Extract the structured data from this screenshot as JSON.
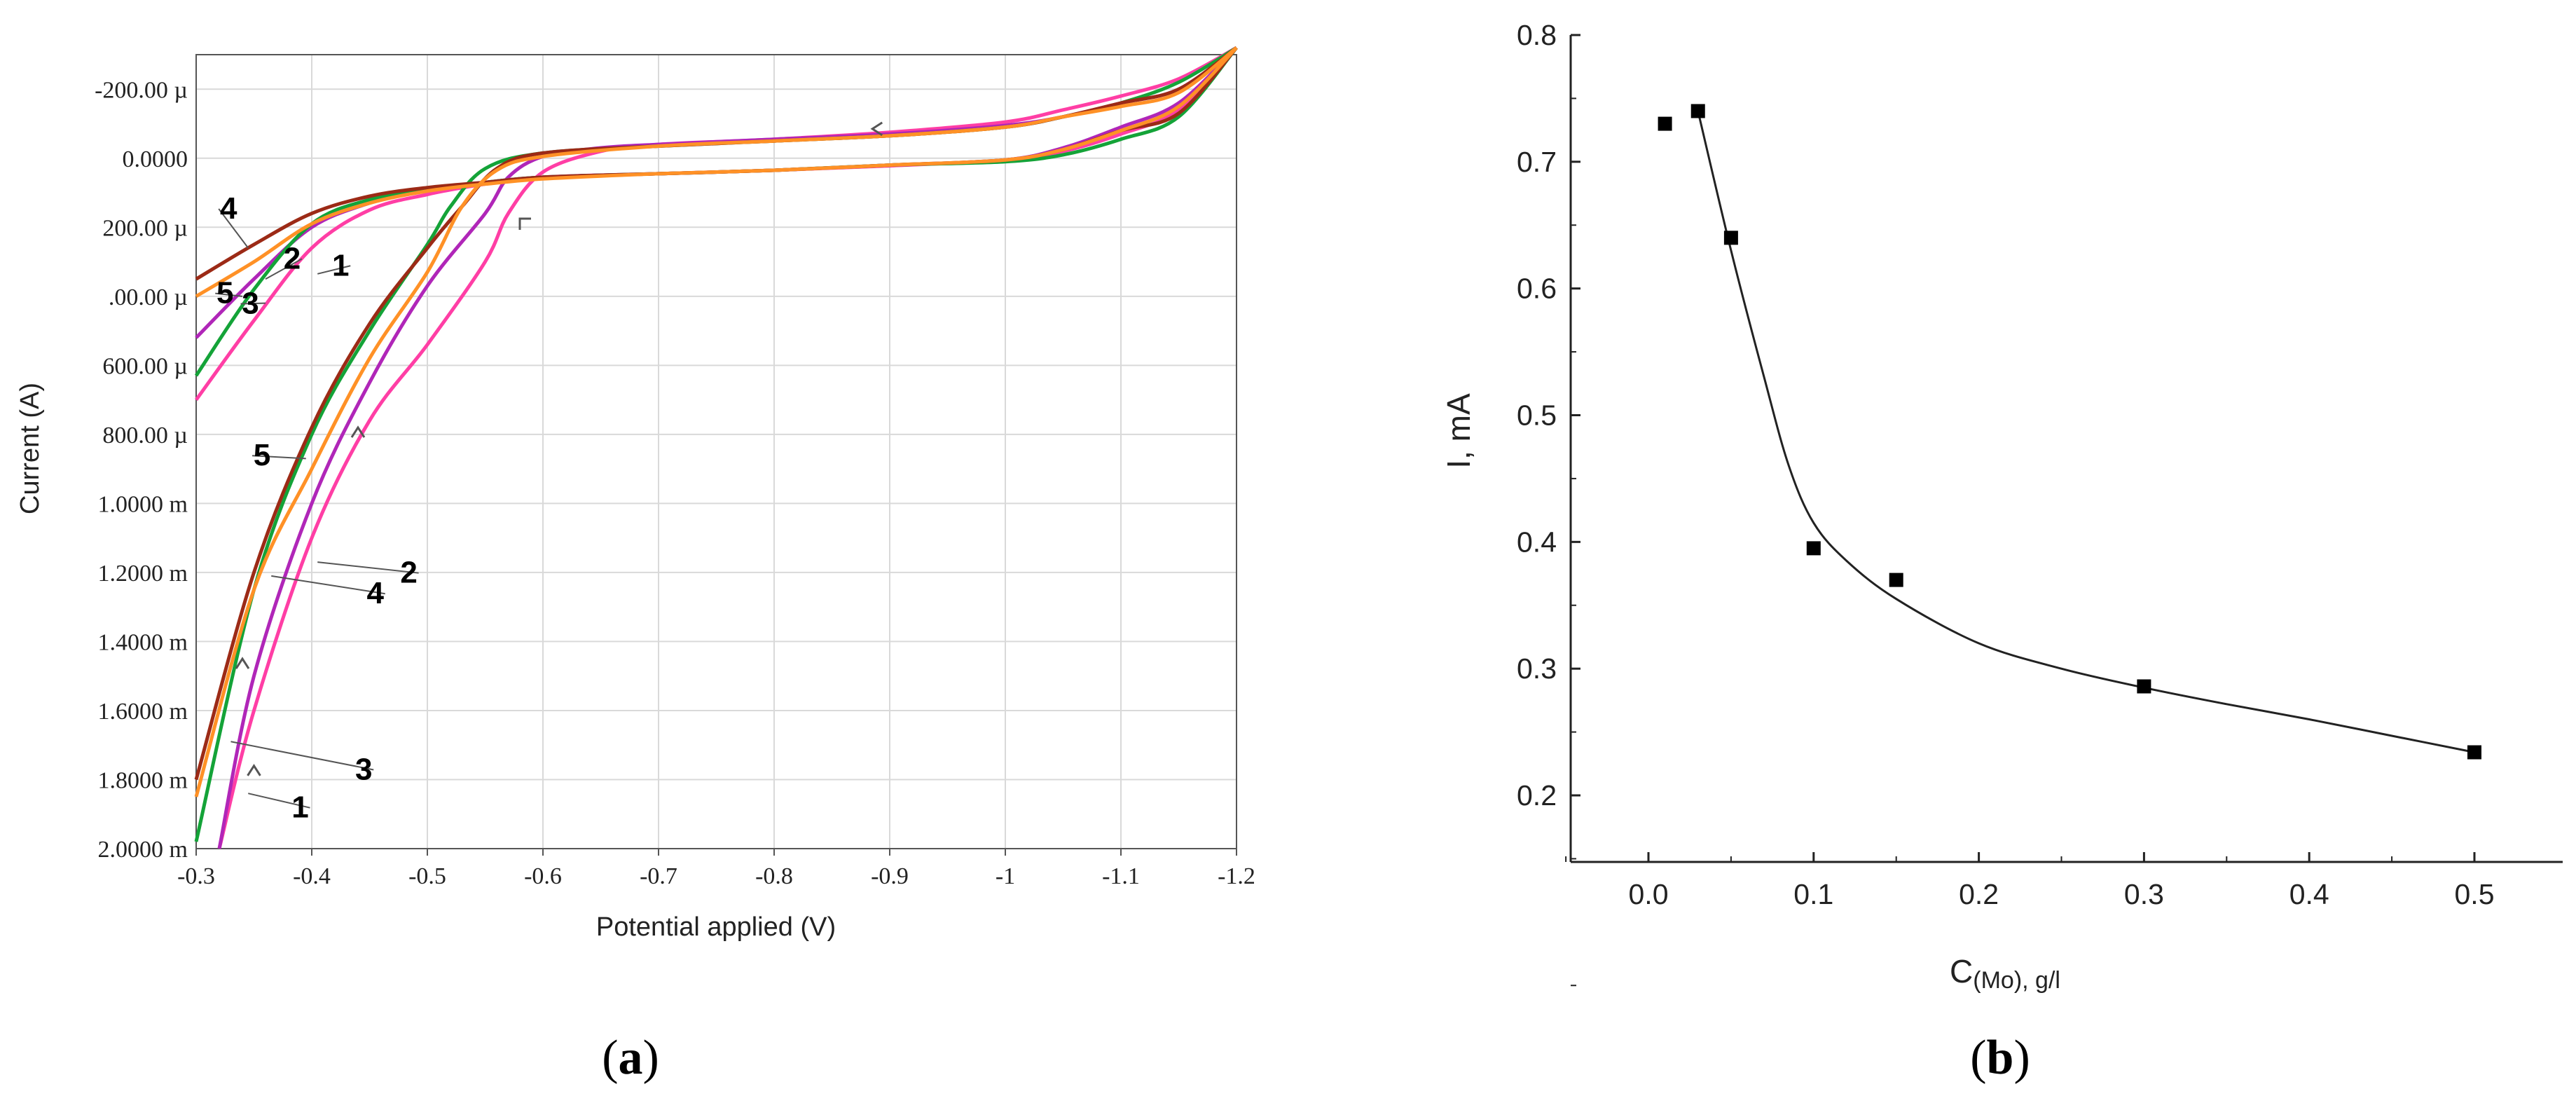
{
  "chart_data": [
    {
      "type": "line",
      "panel_caption": "(a)",
      "caption_letter": "a",
      "xlabel": "Potential applied (V)",
      "ylabel": "Current (A)",
      "xlim": [
        -0.3,
        -1.2
      ],
      "ylim": [
        -300,
        2000
      ],
      "grid": true,
      "x_ticks": [
        "-0.3",
        "-0.4",
        "-0.5",
        "-0.6",
        "-0.7",
        "-0.8",
        "-0.9",
        "-1",
        "-1.1",
        "-1.2"
      ],
      "y_ticks": [
        "-200.00 µ",
        "0.0000",
        "200.00 µ",
        ".00.00 µ",
        "600.00 µ",
        "800.00 µ",
        "1.0000 m",
        "1.2000 m",
        "1.4000 m",
        "1.6000 m",
        "1.8000 m",
        "2.0000 m"
      ],
      "series": [
        {
          "name": "1",
          "color": "#ff3ea5",
          "forward": [
            [
              -0.3,
              700
            ],
            [
              -0.35,
              470
            ],
            [
              -0.4,
              260
            ],
            [
              -0.45,
              150
            ],
            [
              -0.5,
              105
            ],
            [
              -0.55,
              75
            ],
            [
              -0.6,
              55
            ],
            [
              -0.7,
              45
            ],
            [
              -0.8,
              35
            ],
            [
              -0.9,
              22
            ],
            [
              -1.0,
              5
            ],
            [
              -1.05,
              -20
            ],
            [
              -1.1,
              -70
            ],
            [
              -1.15,
              -140
            ],
            [
              -1.2,
              -320
            ]
          ],
          "reverse": [
            [
              -1.2,
              -320
            ],
            [
              -1.15,
              -230
            ],
            [
              -1.1,
              -180
            ],
            [
              -1.05,
              -140
            ],
            [
              -1.0,
              -105
            ],
            [
              -0.9,
              -75
            ],
            [
              -0.8,
              -55
            ],
            [
              -0.7,
              -40
            ],
            [
              -0.65,
              -20
            ],
            [
              -0.6,
              40
            ],
            [
              -0.57,
              160
            ],
            [
              -0.55,
              300
            ],
            [
              -0.5,
              540
            ],
            [
              -0.45,
              760
            ],
            [
              -0.4,
              1100
            ],
            [
              -0.35,
              1600
            ],
            [
              -0.32,
              2000
            ]
          ]
        },
        {
          "name": "2",
          "color": "#b026b8",
          "forward": [
            [
              -0.3,
              520
            ],
            [
              -0.35,
              350
            ],
            [
              -0.4,
              200
            ],
            [
              -0.45,
              130
            ],
            [
              -0.5,
              90
            ],
            [
              -0.55,
              70
            ],
            [
              -0.6,
              55
            ],
            [
              -0.7,
              45
            ],
            [
              -0.8,
              35
            ],
            [
              -0.9,
              20
            ],
            [
              -1.0,
              5
            ],
            [
              -1.05,
              -30
            ],
            [
              -1.1,
              -90
            ],
            [
              -1.15,
              -160
            ],
            [
              -1.2,
              -320
            ]
          ],
          "reverse": [
            [
              -1.2,
              -320
            ],
            [
              -1.15,
              -200
            ],
            [
              -1.1,
              -160
            ],
            [
              -1.05,
              -120
            ],
            [
              -1.0,
              -95
            ],
            [
              -0.9,
              -70
            ],
            [
              -0.8,
              -55
            ],
            [
              -0.7,
              -40
            ],
            [
              -0.65,
              -30
            ],
            [
              -0.6,
              -5
            ],
            [
              -0.57,
              55
            ],
            [
              -0.55,
              160
            ],
            [
              -0.5,
              370
            ],
            [
              -0.45,
              650
            ],
            [
              -0.4,
              1000
            ],
            [
              -0.35,
              1500
            ],
            [
              -0.32,
              2000
            ]
          ]
        },
        {
          "name": "3",
          "color": "#14a338",
          "forward": [
            [
              -0.3,
              630
            ],
            [
              -0.35,
              380
            ],
            [
              -0.4,
              190
            ],
            [
              -0.45,
              120
            ],
            [
              -0.5,
              90
            ],
            [
              -0.55,
              70
            ],
            [
              -0.6,
              55
            ],
            [
              -0.7,
              45
            ],
            [
              -0.8,
              35
            ],
            [
              -0.9,
              20
            ],
            [
              -1.0,
              10
            ],
            [
              -1.05,
              -10
            ],
            [
              -1.1,
              -55
            ],
            [
              -1.15,
              -120
            ],
            [
              -1.2,
              -320
            ]
          ],
          "reverse": [
            [
              -1.2,
              -320
            ],
            [
              -1.15,
              -220
            ],
            [
              -1.1,
              -160
            ],
            [
              -1.05,
              -120
            ],
            [
              -1.0,
              -90
            ],
            [
              -0.9,
              -65
            ],
            [
              -0.8,
              -50
            ],
            [
              -0.7,
              -35
            ],
            [
              -0.6,
              -15
            ],
            [
              -0.55,
              30
            ],
            [
              -0.52,
              140
            ],
            [
              -0.5,
              250
            ],
            [
              -0.45,
              500
            ],
            [
              -0.4,
              800
            ],
            [
              -0.35,
              1250
            ],
            [
              -0.3,
              1980
            ]
          ]
        },
        {
          "name": "4",
          "color": "#9c2a16",
          "forward": [
            [
              -0.3,
              350
            ],
            [
              -0.35,
              250
            ],
            [
              -0.4,
              160
            ],
            [
              -0.45,
              110
            ],
            [
              -0.5,
              85
            ],
            [
              -0.55,
              70
            ],
            [
              -0.6,
              55
            ],
            [
              -0.7,
              45
            ],
            [
              -0.8,
              35
            ],
            [
              -0.9,
              20
            ],
            [
              -1.0,
              5
            ],
            [
              -1.05,
              -25
            ],
            [
              -1.1,
              -80
            ],
            [
              -1.15,
              -130
            ],
            [
              -1.2,
              -320
            ]
          ],
          "reverse": [
            [
              -1.2,
              -320
            ],
            [
              -1.15,
              -200
            ],
            [
              -1.1,
              -160
            ],
            [
              -1.05,
              -120
            ],
            [
              -1.0,
              -90
            ],
            [
              -0.9,
              -65
            ],
            [
              -0.8,
              -50
            ],
            [
              -0.7,
              -35
            ],
            [
              -0.6,
              -15
            ],
            [
              -0.56,
              30
            ],
            [
              -0.53,
              140
            ],
            [
              -0.5,
              260
            ],
            [
              -0.45,
              480
            ],
            [
              -0.4,
              780
            ],
            [
              -0.35,
              1200
            ],
            [
              -0.3,
              1800
            ]
          ]
        },
        {
          "name": "5",
          "color": "#ff9126",
          "forward": [
            [
              -0.3,
              400
            ],
            [
              -0.35,
              300
            ],
            [
              -0.4,
              190
            ],
            [
              -0.45,
              130
            ],
            [
              -0.5,
              95
            ],
            [
              -0.55,
              75
            ],
            [
              -0.6,
              60
            ],
            [
              -0.7,
              45
            ],
            [
              -0.8,
              35
            ],
            [
              -0.9,
              20
            ],
            [
              -1.0,
              5
            ],
            [
              -1.05,
              -25
            ],
            [
              -1.1,
              -80
            ],
            [
              -1.15,
              -150
            ],
            [
              -1.2,
              -320
            ]
          ],
          "reverse": [
            [
              -1.2,
              -320
            ],
            [
              -1.15,
              -190
            ],
            [
              -1.1,
              -150
            ],
            [
              -1.05,
              -120
            ],
            [
              -1.0,
              -90
            ],
            [
              -0.9,
              -65
            ],
            [
              -0.8,
              -50
            ],
            [
              -0.7,
              -35
            ],
            [
              -0.6,
              -5
            ],
            [
              -0.56,
              35
            ],
            [
              -0.53,
              140
            ],
            [
              -0.5,
              330
            ],
            [
              -0.45,
              580
            ],
            [
              -0.4,
              900
            ],
            [
              -0.35,
              1250
            ],
            [
              -0.3,
              1850
            ]
          ]
        }
      ],
      "curve_labels": [
        {
          "text": "4",
          "x": -0.328,
          "y": 175,
          "ax": -0.345,
          "ay": 260
        },
        {
          "text": "2",
          "x": -0.383,
          "y": 320,
          "ax": -0.36,
          "ay": 350
        },
        {
          "text": "1",
          "x": -0.425,
          "y": 340,
          "ax": -0.405,
          "ay": 335
        },
        {
          "text": "5",
          "x": -0.325,
          "y": 420,
          "ax": -0.34,
          "ay": 400
        },
        {
          "text": "3",
          "x": -0.347,
          "y": 450,
          "ax": -0.36,
          "ay": 420
        },
        {
          "text": "5",
          "x": -0.357,
          "y": 890,
          "ax": -0.395,
          "ay": 870
        },
        {
          "text": "2",
          "x": -0.484,
          "y": 1230,
          "ax": -0.405,
          "ay": 1170
        },
        {
          "text": "4",
          "x": -0.455,
          "y": 1290,
          "ax": -0.365,
          "ay": 1210
        },
        {
          "text": "3",
          "x": -0.445,
          "y": 1800,
          "ax": -0.33,
          "ay": 1690
        },
        {
          "text": "1",
          "x": -0.39,
          "y": 1910,
          "ax": -0.345,
          "ay": 1840
        }
      ],
      "direction_arrows": [
        {
          "x": -0.885,
          "y": -85,
          "dir": "left"
        },
        {
          "x": -0.58,
          "y": 175,
          "dir": "up-left"
        },
        {
          "x": -0.44,
          "y": 780,
          "dir": "up"
        },
        {
          "x": -0.34,
          "y": 1450,
          "dir": "up"
        },
        {
          "x": -0.35,
          "y": 1760,
          "dir": "up"
        }
      ]
    },
    {
      "type": "scatter",
      "panel_caption": "(b)",
      "caption_letter": "b",
      "xlabel_main": "C",
      "xlabel_sub": "(Mo), g/l",
      "ylabel": "I, mA",
      "xlim": [
        -0.05,
        0.55
      ],
      "ylim": [
        0.2,
        0.8
      ],
      "x_ticks": [
        "0.0",
        "0.1",
        "0.2",
        "0.3",
        "0.4",
        "0.5"
      ],
      "y_ticks": [
        "0.2",
        "0.3",
        "0.4",
        "0.5",
        "0.6",
        "0.7",
        "0.8"
      ],
      "points": [
        [
          0.01,
          0.73
        ],
        [
          0.03,
          0.74
        ],
        [
          0.05,
          0.64
        ],
        [
          0.1,
          0.395
        ],
        [
          0.15,
          0.37
        ],
        [
          0.3,
          0.286
        ],
        [
          0.5,
          0.234
        ]
      ],
      "fit_curve": [
        [
          0.03,
          0.74
        ],
        [
          0.05,
          0.63
        ],
        [
          0.07,
          0.53
        ],
        [
          0.085,
          0.46
        ],
        [
          0.1,
          0.415
        ],
        [
          0.12,
          0.385
        ],
        [
          0.15,
          0.355
        ],
        [
          0.2,
          0.32
        ],
        [
          0.25,
          0.3
        ],
        [
          0.3,
          0.285
        ],
        [
          0.35,
          0.272
        ],
        [
          0.4,
          0.26
        ],
        [
          0.45,
          0.247
        ],
        [
          0.5,
          0.234
        ]
      ]
    }
  ]
}
